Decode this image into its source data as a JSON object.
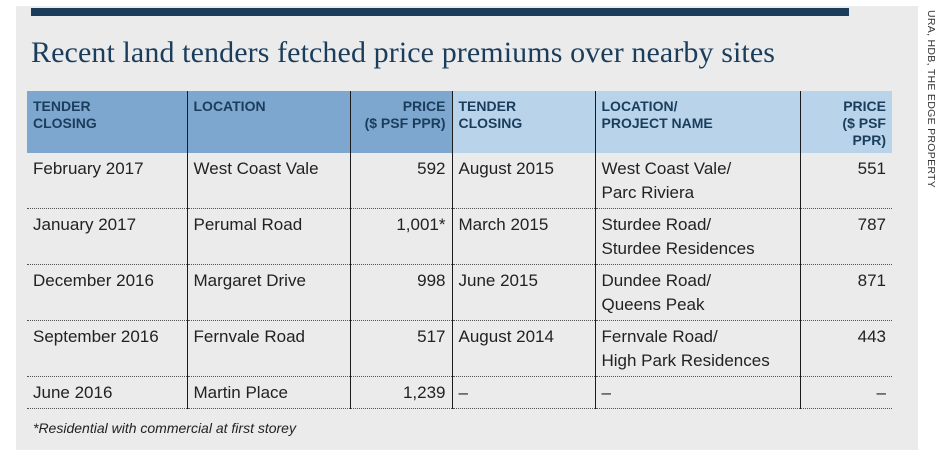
{
  "title": "Recent land tenders fetched price premiums over nearby sites",
  "source": "URA, HDB, THE EDGE PROPERTY",
  "headers": {
    "c1": "TENDER\nCLOSING",
    "c2": "LOCATION",
    "c3": "PRICE\n($ PSF PPR)",
    "c4": "TENDER\nCLOSING",
    "c5": "LOCATION/\nPROJECT NAME",
    "c6": "PRICE\n($ PSF PPR)"
  },
  "rows": [
    {
      "c1": "February 2017",
      "c2": "West Coast Vale",
      "c3": "592",
      "c4": "August 2015",
      "c5": "West Coast Vale/\nParc Riviera",
      "c6": "551"
    },
    {
      "c1": "January 2017",
      "c2": "Perumal Road",
      "c3": "1,001*",
      "c4": "March 2015",
      "c5": "Sturdee Road/\nSturdee Residences",
      "c6": "787"
    },
    {
      "c1": "December 2016",
      "c2": "Margaret Drive",
      "c3": "998",
      "c4": "June 2015",
      "c5": "Dundee Road/\nQueens Peak",
      "c6": "871"
    },
    {
      "c1": "September 2016",
      "c2": "Fernvale Road",
      "c3": "517",
      "c4": "August 2014",
      "c5": "Fernvale Road/\nHigh Park Residences",
      "c6": "443"
    },
    {
      "c1": "June 2016",
      "c2": "Martin Place",
      "c3": "1,239",
      "c4": "–",
      "c5": "–",
      "c6": "–"
    }
  ],
  "footnote": "*Residential with commercial at first storey",
  "colors": {
    "navy": "#1a3d5c",
    "header_dark": "#7ea7cf",
    "header_light": "#b8d3ea",
    "panel": "#ebebeb"
  }
}
